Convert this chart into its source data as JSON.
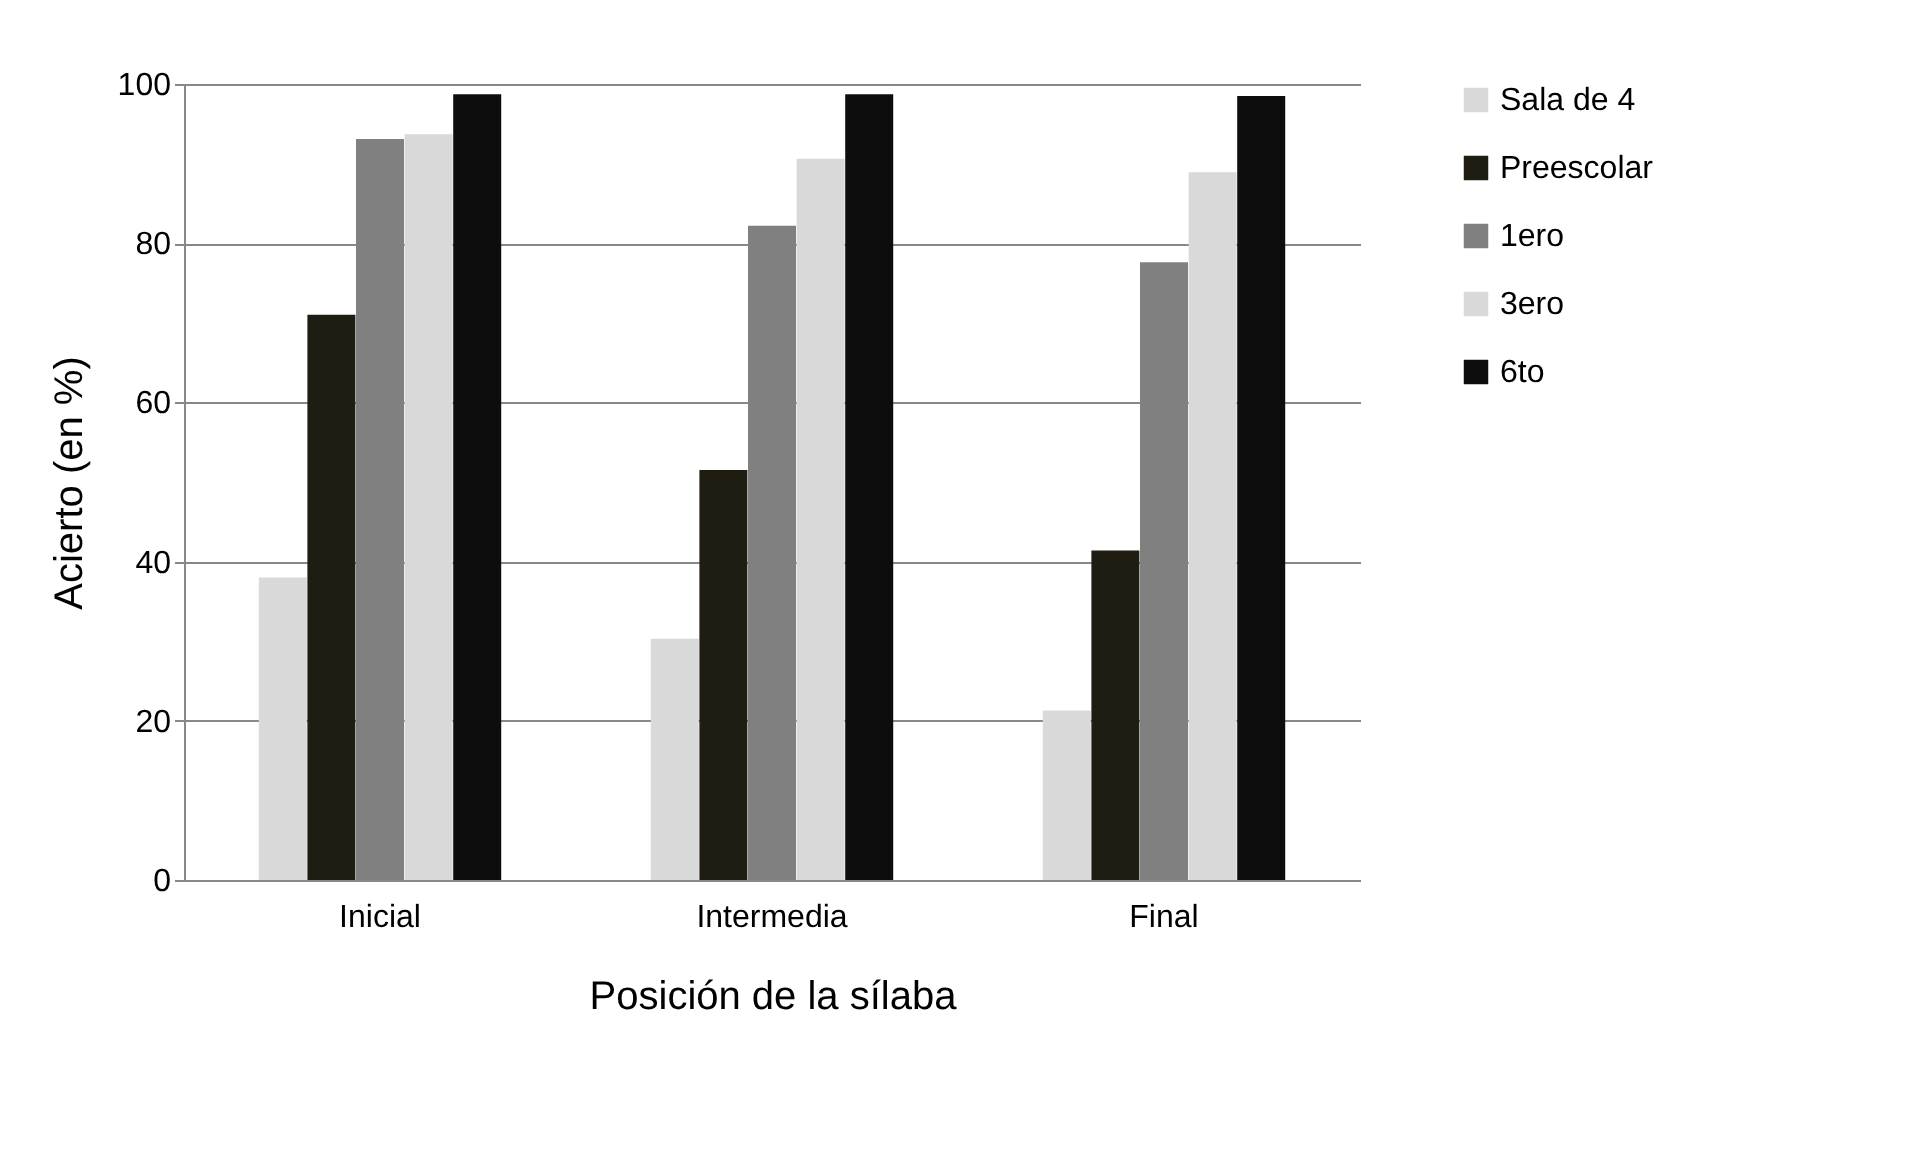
{
  "chart_data": {
    "type": "bar",
    "xlabel": "Posición de la sílaba",
    "ylabel": "Acierto (en %)",
    "categories": [
      "Inicial",
      "Intermedia",
      "Final"
    ],
    "series": [
      {
        "name": "Sala de 4",
        "color": "#d9d9d9",
        "values": [
          38,
          30.3,
          21.3
        ]
      },
      {
        "name": "Preescolar",
        "color": "#1f1c12",
        "values": [
          71,
          51.5,
          41.4
        ]
      },
      {
        "name": "1ero",
        "color": "#808080",
        "values": [
          93.1,
          82.2,
          77.6
        ]
      },
      {
        "name": "3ero",
        "color": "#d9d9d9",
        "values": [
          93.7,
          90.6,
          88.9
        ]
      },
      {
        "name": "6to",
        "color": "#0d0d0d",
        "values": [
          98.7,
          98.7,
          98.5
        ]
      }
    ],
    "ylim": [
      0,
      100
    ],
    "yticks": [
      0,
      20,
      40,
      60,
      80,
      100
    ],
    "grid": "y",
    "legend": "right"
  }
}
